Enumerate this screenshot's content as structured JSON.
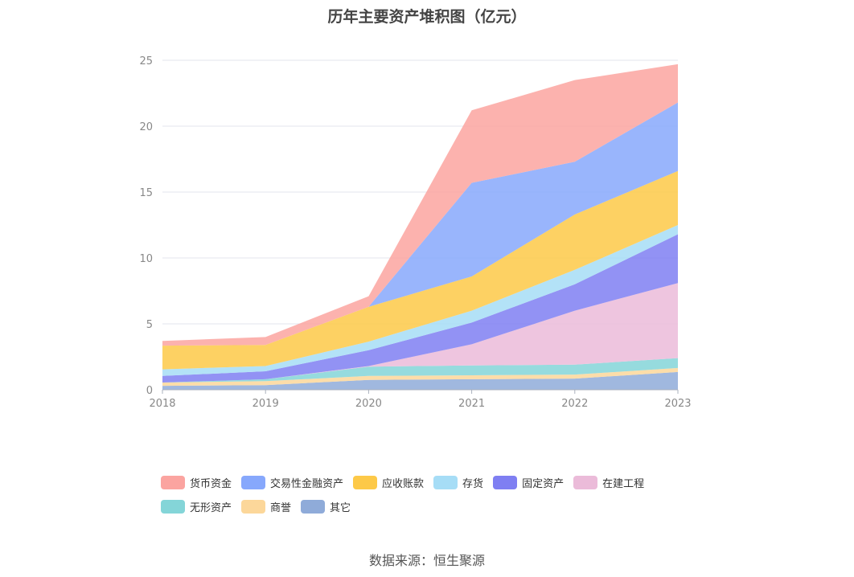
{
  "chart_data": {
    "type": "area",
    "stacked": true,
    "title": "历年主要资产堆积图（亿元）",
    "x": [
      "2018",
      "2019",
      "2020",
      "2021",
      "2022",
      "2023"
    ],
    "ylim": [
      0,
      25
    ],
    "yticks": [
      "0",
      "5",
      "10",
      "15",
      "20",
      "25"
    ],
    "grid": true,
    "legend_position": "bottom",
    "series": [
      {
        "name": "其它",
        "color": "#8fabd9",
        "values": [
          0.3,
          0.35,
          0.75,
          0.8,
          0.85,
          1.35
        ]
      },
      {
        "name": "商誉",
        "color": "#fcd79a",
        "values": [
          0.25,
          0.3,
          0.3,
          0.3,
          0.3,
          0.3
        ]
      },
      {
        "name": "无形资产",
        "color": "#84d5d8",
        "values": [
          0.0,
          0.15,
          0.7,
          0.75,
          0.75,
          0.75
        ]
      },
      {
        "name": "在建工程",
        "color": "#ebbbd9",
        "values": [
          0.0,
          0.0,
          0.05,
          1.6,
          4.1,
          5.7
        ]
      },
      {
        "name": "固定资产",
        "color": "#7f7ff2",
        "values": [
          0.5,
          0.6,
          1.2,
          1.65,
          2.0,
          3.7
        ]
      },
      {
        "name": "存货",
        "color": "#a6ddf6",
        "values": [
          0.5,
          0.4,
          0.65,
          0.9,
          1.1,
          0.7
        ]
      },
      {
        "name": "应收账款",
        "color": "#fdc948",
        "values": [
          1.8,
          1.6,
          2.65,
          2.6,
          4.2,
          4.1
        ]
      },
      {
        "name": "交易性金融资产",
        "color": "#87a8fc",
        "values": [
          0.0,
          0.0,
          0.0,
          7.1,
          4.0,
          5.2
        ]
      },
      {
        "name": "货币资金",
        "color": "#fba4a0",
        "values": [
          0.35,
          0.6,
          0.8,
          5.5,
          6.2,
          2.9
        ]
      }
    ]
  },
  "legend": {
    "items": [
      {
        "label": "货币资金",
        "color": "#fba4a0"
      },
      {
        "label": "交易性金融资产",
        "color": "#87a8fc"
      },
      {
        "label": "应收账款",
        "color": "#fdc948"
      },
      {
        "label": "存货",
        "color": "#a6ddf6"
      },
      {
        "label": "固定资产",
        "color": "#7f7ff2"
      },
      {
        "label": "在建工程",
        "color": "#ebbbd9"
      },
      {
        "label": "无形资产",
        "color": "#84d5d8"
      },
      {
        "label": "商誉",
        "color": "#fcd79a"
      },
      {
        "label": "其它",
        "color": "#8fabd9"
      }
    ]
  },
  "source": "数据来源：恒生聚源"
}
